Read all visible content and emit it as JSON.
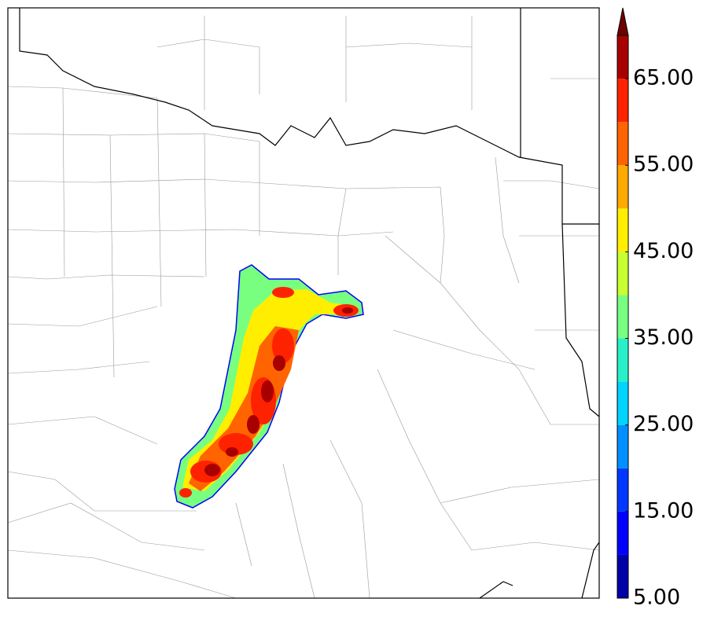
{
  "colorbar": {
    "levels": [
      5,
      10,
      15,
      20,
      25,
      30,
      35,
      40,
      45,
      50,
      55,
      60,
      65,
      70
    ],
    "colors": [
      "#0000a8",
      "#0000ff",
      "#0038ff",
      "#0090ff",
      "#00d4ff",
      "#28f0c8",
      "#78ff80",
      "#c8ff30",
      "#ffee00",
      "#ffaa00",
      "#ff6400",
      "#ff2200",
      "#a80000"
    ],
    "extend": "max",
    "extend_color": "#700000",
    "ticks": [
      {
        "value": 5,
        "label": "5.00"
      },
      {
        "value": 15,
        "label": "15.00"
      },
      {
        "value": 25,
        "label": "25.00"
      },
      {
        "value": 35,
        "label": "35.00"
      },
      {
        "value": 45,
        "label": "45.00"
      },
      {
        "value": 55,
        "label": "55.00"
      },
      {
        "value": 65,
        "label": "65.00"
      }
    ]
  }
}
